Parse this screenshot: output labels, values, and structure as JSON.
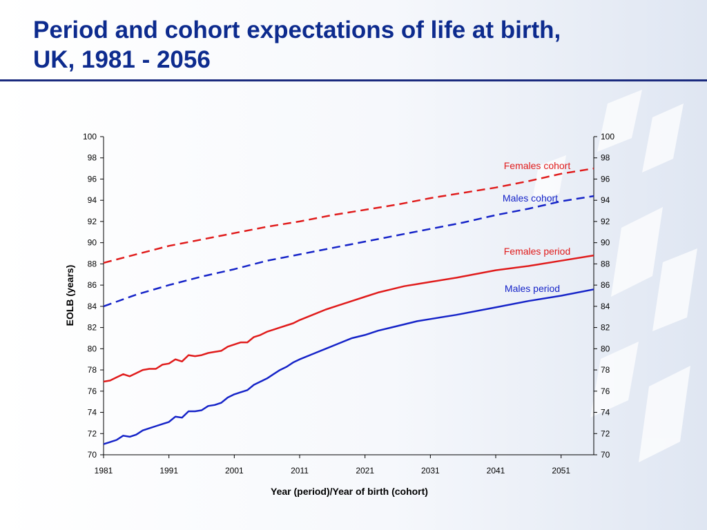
{
  "slide": {
    "title_line1": "Period and cohort expectations of life at birth,",
    "title_line2": "UK, 1981 - 2056"
  },
  "colors": {
    "title": "#0d2b8e",
    "females": "#e01b1b",
    "males": "#1523c8",
    "axis": "#000000"
  },
  "chart_data": {
    "type": "line",
    "title": "",
    "xlabel": "Year (period)/Year of birth (cohort)",
    "ylabel": "EOLB (years)",
    "ylim": [
      70,
      100
    ],
    "xlim": [
      1981,
      2056
    ],
    "y_ticks": [
      70,
      72,
      74,
      76,
      78,
      80,
      82,
      84,
      86,
      88,
      90,
      92,
      94,
      96,
      98,
      100
    ],
    "x_ticks": [
      1981,
      1991,
      2001,
      2011,
      2021,
      2031,
      2041,
      2051
    ],
    "secondary_y_axis": true,
    "grid": false,
    "legend": "inline labels at right end of lines",
    "series": [
      {
        "name": "Females cohort",
        "color": "#e01b1b",
        "style": "dashed",
        "x": [
          1981,
          1986,
          1991,
          1996,
          2001,
          2006,
          2011,
          2016,
          2021,
          2026,
          2031,
          2036,
          2041,
          2046,
          2051,
          2056
        ],
        "values": [
          88.1,
          88.9,
          89.7,
          90.3,
          90.9,
          91.5,
          92.0,
          92.6,
          93.1,
          93.6,
          94.2,
          94.7,
          95.2,
          95.8,
          96.5,
          97.0
        ]
      },
      {
        "name": "Males cohort",
        "color": "#1523c8",
        "style": "dashed",
        "x": [
          1981,
          1986,
          1991,
          1996,
          2001,
          2006,
          2011,
          2016,
          2021,
          2026,
          2031,
          2036,
          2041,
          2046,
          2051,
          2056
        ],
        "values": [
          84.0,
          85.1,
          86.0,
          86.8,
          87.5,
          88.3,
          88.9,
          89.5,
          90.1,
          90.7,
          91.3,
          91.9,
          92.6,
          93.2,
          93.9,
          94.4
        ]
      },
      {
        "name": "Females period",
        "color": "#e01b1b",
        "style": "solid",
        "x": [
          1981,
          1982,
          1983,
          1984,
          1985,
          1986,
          1987,
          1988,
          1989,
          1990,
          1991,
          1992,
          1993,
          1994,
          1995,
          1996,
          1997,
          1998,
          1999,
          2000,
          2001,
          2002,
          2003,
          2004,
          2005,
          2006,
          2007,
          2008,
          2009,
          2010,
          2011,
          2013,
          2015,
          2017,
          2019,
          2021,
          2023,
          2025,
          2027,
          2029,
          2031,
          2035,
          2041,
          2046,
          2051,
          2056
        ],
        "values": [
          76.9,
          77.0,
          77.3,
          77.6,
          77.4,
          77.7,
          78.0,
          78.1,
          78.1,
          78.5,
          78.6,
          79.0,
          78.8,
          79.4,
          79.3,
          79.4,
          79.6,
          79.7,
          79.8,
          80.2,
          80.4,
          80.6,
          80.6,
          81.1,
          81.3,
          81.6,
          81.8,
          82.0,
          82.2,
          82.4,
          82.7,
          83.2,
          83.7,
          84.1,
          84.5,
          84.9,
          85.3,
          85.6,
          85.9,
          86.1,
          86.3,
          86.7,
          87.4,
          87.8,
          88.3,
          88.8
        ]
      },
      {
        "name": "Males period",
        "color": "#1523c8",
        "style": "solid",
        "x": [
          1981,
          1982,
          1983,
          1984,
          1985,
          1986,
          1987,
          1988,
          1989,
          1990,
          1991,
          1992,
          1993,
          1994,
          1995,
          1996,
          1997,
          1998,
          1999,
          2000,
          2001,
          2002,
          2003,
          2004,
          2005,
          2006,
          2007,
          2008,
          2009,
          2010,
          2011,
          2013,
          2015,
          2017,
          2019,
          2021,
          2023,
          2025,
          2027,
          2029,
          2031,
          2035,
          2041,
          2046,
          2051,
          2056
        ],
        "values": [
          71.0,
          71.2,
          71.4,
          71.8,
          71.7,
          71.9,
          72.3,
          72.5,
          72.7,
          72.9,
          73.1,
          73.6,
          73.5,
          74.1,
          74.1,
          74.2,
          74.6,
          74.7,
          74.9,
          75.4,
          75.7,
          75.9,
          76.1,
          76.6,
          76.9,
          77.2,
          77.6,
          78.0,
          78.3,
          78.7,
          79.0,
          79.5,
          80.0,
          80.5,
          81.0,
          81.3,
          81.7,
          82.0,
          82.3,
          82.6,
          82.8,
          83.2,
          83.9,
          84.5,
          85.0,
          85.6
        ]
      }
    ]
  }
}
